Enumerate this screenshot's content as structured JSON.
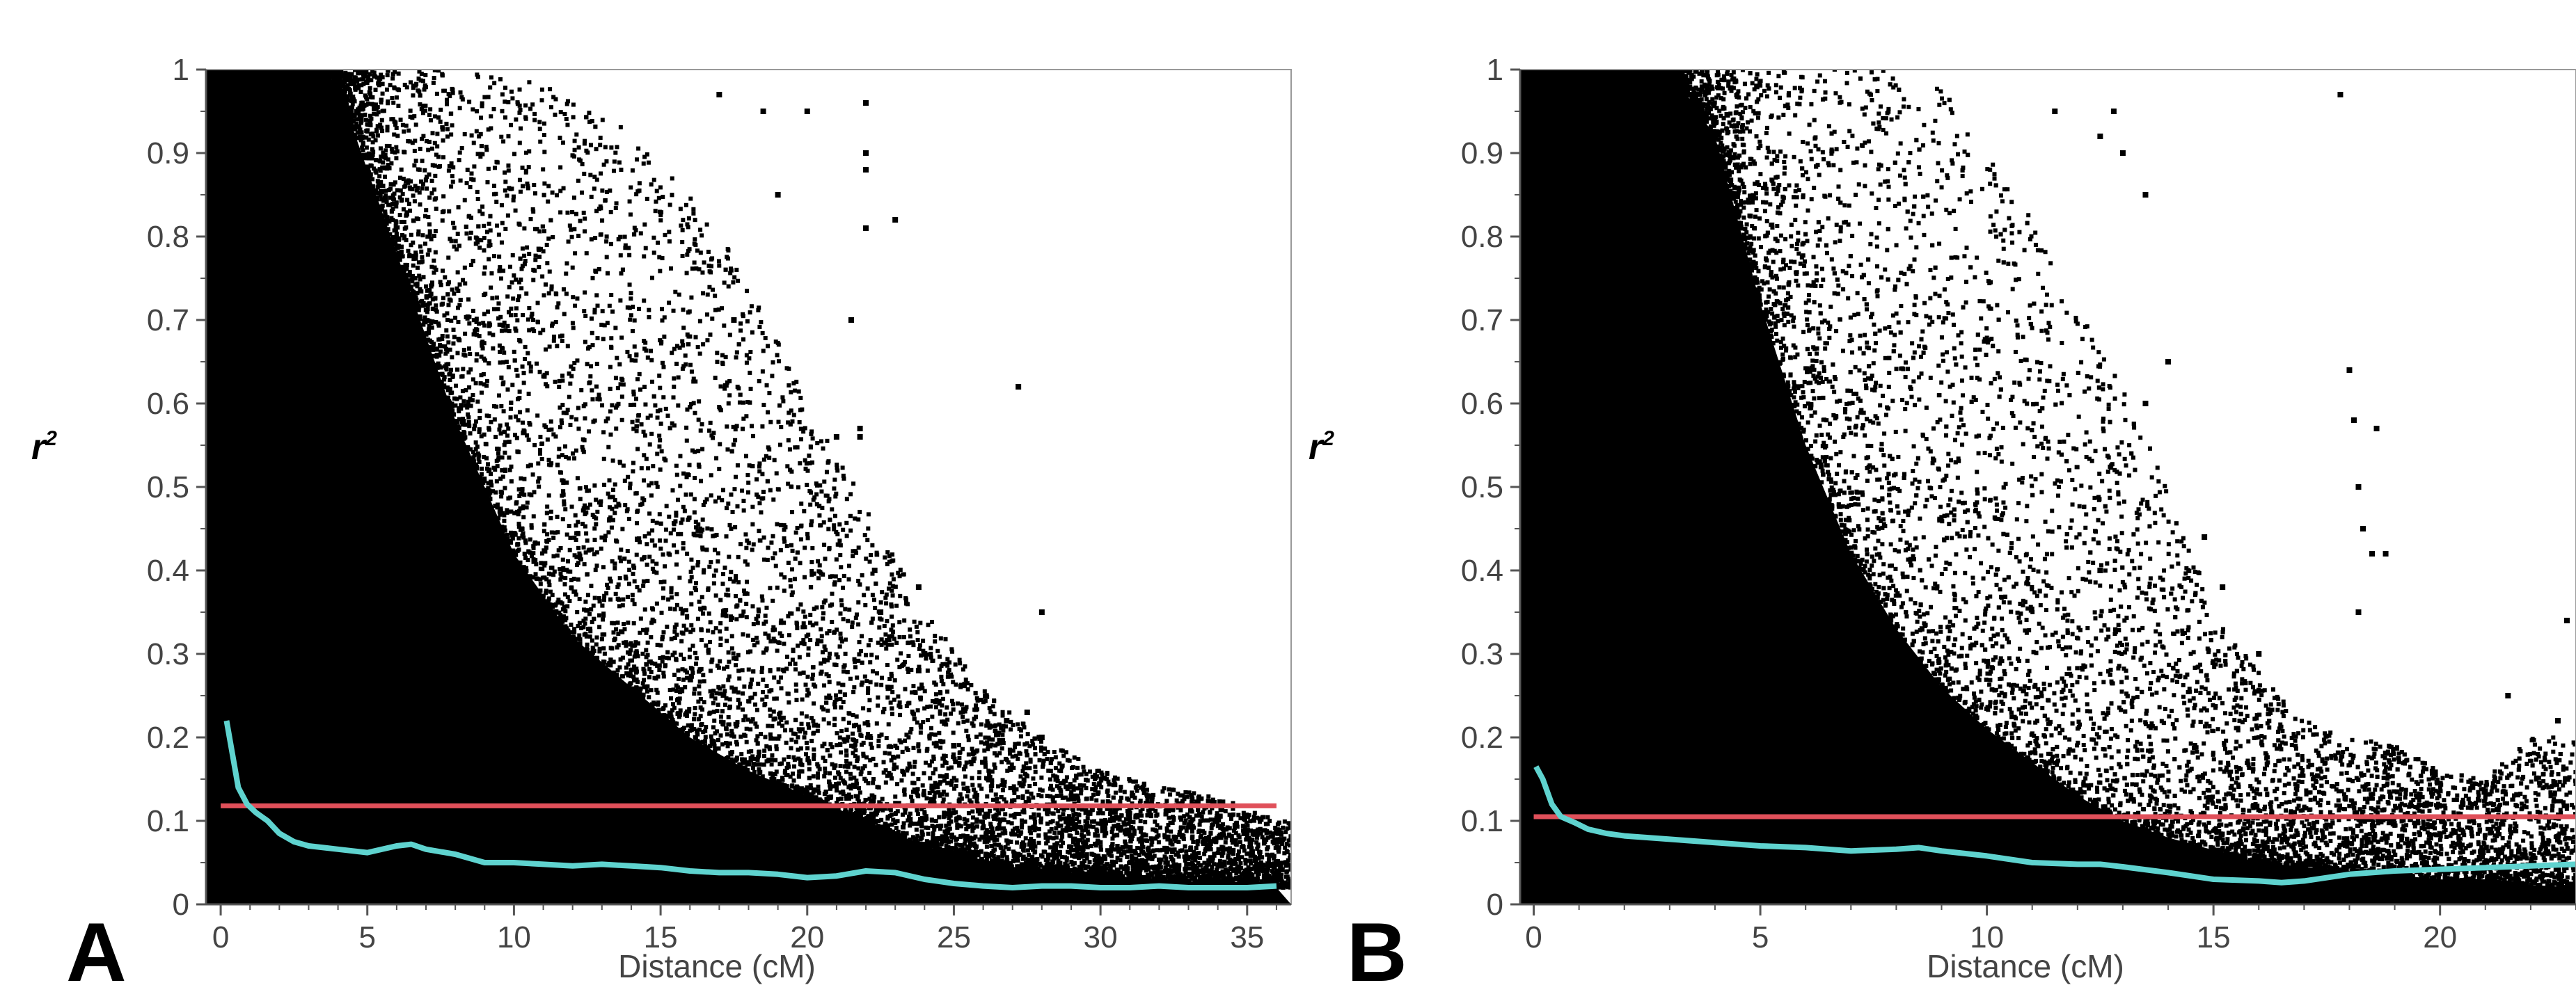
{
  "chart_data": [
    {
      "type": "scatter",
      "panel_label": "A",
      "xlabel": "Distance (cM)",
      "ylabel_base": "r",
      "ylabel_sup": "2",
      "xlim": [
        -0.5,
        36.5
      ],
      "ylim": [
        0,
        1
      ],
      "x_ticks": [
        0,
        5,
        10,
        15,
        20,
        25,
        30,
        35
      ],
      "y_ticks": [
        0,
        0.1,
        0.2,
        0.3,
        0.4,
        0.5,
        0.6,
        0.7,
        0.8,
        0.9,
        1
      ],
      "y_tick_labels": [
        "0",
        "0.1",
        "0.2",
        "0.3",
        "0.4",
        "0.5",
        "0.6",
        "0.7",
        "0.8",
        "0.9",
        "1"
      ],
      "grid": false,
      "point_color": "#000000",
      "dense_boundary": [
        [
          0.5,
          1
        ],
        [
          2,
          1
        ],
        [
          4,
          0.98
        ],
        [
          6,
          0.78
        ],
        [
          8,
          0.58
        ],
        [
          10,
          0.42
        ],
        [
          12,
          0.32
        ],
        [
          14,
          0.26
        ],
        [
          16,
          0.2
        ],
        [
          18,
          0.16
        ],
        [
          20,
          0.13
        ],
        [
          22,
          0.1
        ],
        [
          24,
          0.07
        ],
        [
          26,
          0.05
        ],
        [
          28,
          0.04
        ],
        [
          32,
          0.03
        ],
        [
          36,
          0.02
        ]
      ],
      "scatter_extent": [
        [
          2,
          1
        ],
        [
          4,
          1
        ],
        [
          6,
          1
        ],
        [
          8,
          1
        ],
        [
          10,
          0.99
        ],
        [
          12,
          0.97
        ],
        [
          14,
          0.93
        ],
        [
          16,
          0.85
        ],
        [
          18,
          0.75
        ],
        [
          20,
          0.6
        ],
        [
          22,
          0.48
        ],
        [
          24,
          0.35
        ],
        [
          26,
          0.26
        ],
        [
          28,
          0.2
        ],
        [
          30,
          0.16
        ],
        [
          32,
          0.14
        ],
        [
          34,
          0.13
        ],
        [
          36,
          0.1
        ]
      ],
      "outliers": [
        [
          17,
          0.97
        ],
        [
          18.5,
          0.95
        ],
        [
          20,
          0.95
        ],
        [
          22,
          0.96
        ],
        [
          22,
          0.9
        ],
        [
          22,
          0.81
        ],
        [
          23,
          0.82
        ],
        [
          27.2,
          0.62
        ],
        [
          28,
          0.35
        ],
        [
          23.8,
          0.38
        ],
        [
          23.8,
          0.28
        ],
        [
          26.8,
          0.22
        ],
        [
          27.5,
          0.23
        ],
        [
          28,
          0.2
        ],
        [
          19,
          0.85
        ],
        [
          17.5,
          0.7
        ],
        [
          21.5,
          0.7
        ],
        [
          21,
          0.56
        ],
        [
          21.8,
          0.56
        ],
        [
          22.3,
          0.4
        ],
        [
          22.5,
          0.35
        ],
        [
          24,
          0.3
        ],
        [
          22,
          0.9
        ],
        [
          22,
          0.88
        ],
        [
          21.8,
          0.57
        ],
        [
          25,
          0.19
        ],
        [
          26.5,
          0.12
        ],
        [
          29,
          0.1
        ]
      ],
      "lines": [
        {
          "name": "threshold",
          "color": "#e0505a",
          "x": [
            0,
            36
          ],
          "y": [
            0.118,
            0.118
          ]
        },
        {
          "name": "fitted-decay",
          "color": "#5fd3cf",
          "x": [
            0.2,
            0.4,
            0.6,
            0.9,
            1.2,
            1.6,
            2,
            2.5,
            3,
            3.5,
            4,
            5,
            6,
            6.5,
            7,
            8,
            9,
            10,
            11,
            12,
            13,
            14,
            15,
            16,
            17,
            18,
            19,
            20,
            21,
            22,
            23,
            24,
            25,
            26,
            27,
            28,
            29,
            30,
            31,
            32,
            33,
            34,
            35,
            36
          ],
          "y": [
            0.22,
            0.18,
            0.14,
            0.12,
            0.11,
            0.1,
            0.085,
            0.075,
            0.07,
            0.068,
            0.066,
            0.062,
            0.07,
            0.072,
            0.066,
            0.06,
            0.05,
            0.05,
            0.048,
            0.046,
            0.048,
            0.046,
            0.044,
            0.04,
            0.038,
            0.038,
            0.036,
            0.032,
            0.034,
            0.04,
            0.038,
            0.03,
            0.025,
            0.022,
            0.02,
            0.022,
            0.022,
            0.02,
            0.02,
            0.022,
            0.02,
            0.02,
            0.02,
            0.022
          ]
        }
      ]
    },
    {
      "type": "scatter",
      "panel_label": "B",
      "xlabel": "Distance (cM)",
      "ylabel_base": "r",
      "ylabel_sup": "2",
      "xlim": [
        -0.3,
        23
      ],
      "ylim": [
        0,
        1
      ],
      "x_ticks": [
        0,
        5,
        10,
        15,
        20
      ],
      "y_ticks": [
        0,
        0.1,
        0.2,
        0.3,
        0.4,
        0.5,
        0.6,
        0.7,
        0.8,
        0.9,
        1
      ],
      "y_tick_labels": [
        "0",
        "0.1",
        "0.2",
        "0.3",
        "0.4",
        "0.5",
        "0.6",
        "0.7",
        "0.8",
        "0.9",
        "1"
      ],
      "grid": false,
      "point_color": "#000000",
      "dense_boundary": [
        [
          0.2,
          1
        ],
        [
          1.5,
          1
        ],
        [
          3,
          1
        ],
        [
          4,
          0.92
        ],
        [
          5,
          0.72
        ],
        [
          6,
          0.55
        ],
        [
          7,
          0.42
        ],
        [
          8,
          0.33
        ],
        [
          9,
          0.26
        ],
        [
          10,
          0.21
        ],
        [
          11,
          0.17
        ],
        [
          12,
          0.13
        ],
        [
          13,
          0.1
        ],
        [
          14,
          0.08
        ],
        [
          16,
          0.05
        ],
        [
          18,
          0.04
        ],
        [
          20,
          0.03
        ],
        [
          23,
          0.02
        ]
      ],
      "scatter_extent": [
        [
          3,
          1
        ],
        [
          5,
          1
        ],
        [
          7,
          1
        ],
        [
          8,
          1
        ],
        [
          9,
          0.99
        ],
        [
          10,
          0.9
        ],
        [
          11,
          0.82
        ],
        [
          12,
          0.72
        ],
        [
          13,
          0.62
        ],
        [
          14,
          0.5
        ],
        [
          15,
          0.35
        ],
        [
          16,
          0.28
        ],
        [
          17,
          0.22
        ],
        [
          18,
          0.2
        ],
        [
          19,
          0.19
        ],
        [
          20,
          0.16
        ],
        [
          21,
          0.15
        ],
        [
          22,
          0.2
        ],
        [
          23,
          0.2
        ]
      ],
      "outliers": [
        [
          11.5,
          0.95
        ],
        [
          12.5,
          0.92
        ],
        [
          12.8,
          0.95
        ],
        [
          13,
          0.9
        ],
        [
          13.5,
          0.85
        ],
        [
          17.8,
          0.97
        ],
        [
          18,
          0.64
        ],
        [
          18.1,
          0.58
        ],
        [
          18.2,
          0.5
        ],
        [
          18.3,
          0.45
        ],
        [
          18.6,
          0.57
        ],
        [
          18.5,
          0.42
        ],
        [
          18.8,
          0.42
        ],
        [
          18.2,
          0.35
        ],
        [
          22.8,
          0.34
        ],
        [
          22.6,
          0.22
        ],
        [
          21.5,
          0.25
        ],
        [
          20.5,
          0.12
        ],
        [
          16,
          0.3
        ],
        [
          14.8,
          0.44
        ],
        [
          15.2,
          0.38
        ],
        [
          14,
          0.65
        ],
        [
          13.5,
          0.6
        ],
        [
          12.5,
          0.4
        ]
      ],
      "lines": [
        {
          "name": "threshold",
          "color": "#e0505a",
          "x": [
            0,
            23
          ],
          "y": [
            0.105,
            0.105
          ]
        },
        {
          "name": "fitted-decay",
          "color": "#5fd3cf",
          "x": [
            0.05,
            0.2,
            0.4,
            0.6,
            0.9,
            1.2,
            1.6,
            2,
            2.5,
            3,
            4,
            5,
            6,
            7,
            8,
            8.5,
            9,
            10,
            11,
            12,
            12.5,
            13,
            14,
            15,
            16,
            16.5,
            17,
            18,
            19,
            20,
            21,
            22,
            23
          ],
          "y": [
            0.165,
            0.15,
            0.12,
            0.105,
            0.098,
            0.09,
            0.085,
            0.082,
            0.08,
            0.078,
            0.074,
            0.07,
            0.068,
            0.064,
            0.066,
            0.068,
            0.064,
            0.058,
            0.05,
            0.048,
            0.048,
            0.045,
            0.038,
            0.03,
            0.028,
            0.026,
            0.028,
            0.036,
            0.04,
            0.042,
            0.044,
            0.046,
            0.048
          ]
        }
      ]
    }
  ]
}
